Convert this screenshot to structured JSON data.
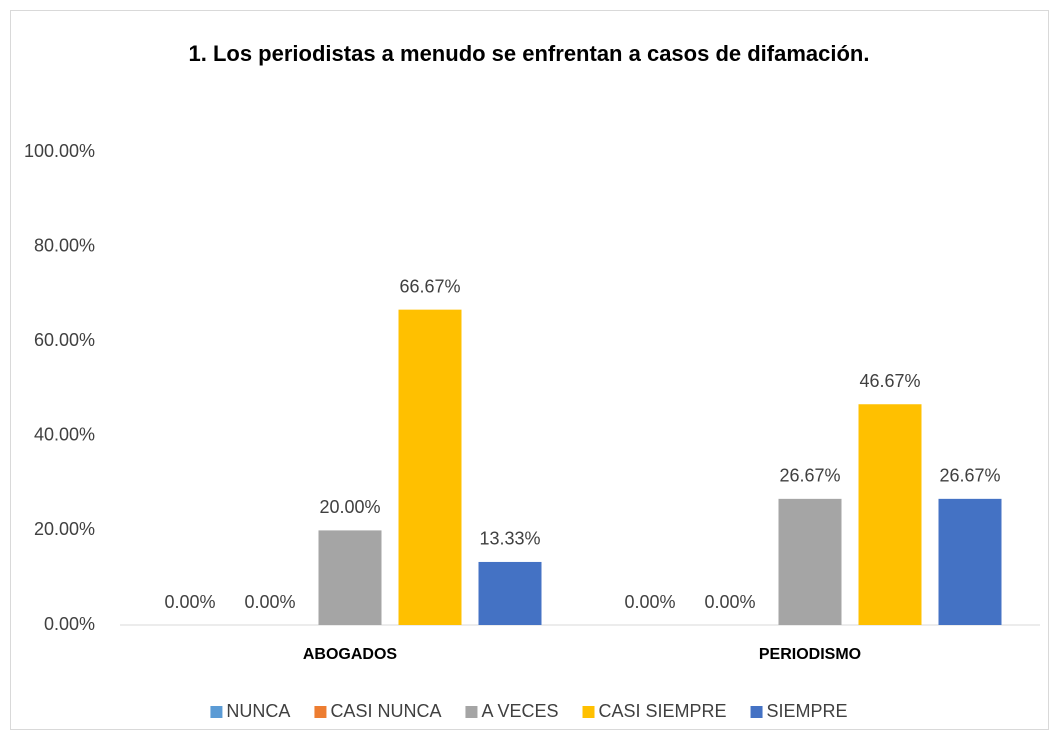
{
  "chart_data": {
    "type": "bar",
    "title": "1. Los periodistas a menudo se enfrentan a casos de difamación.",
    "categories": [
      "ABOGADOS",
      "PERIODISMO"
    ],
    "series": [
      {
        "name": "NUNCA",
        "color": "#5b9bd5",
        "values": [
          0,
          0
        ],
        "value_labels": [
          "0.00%",
          "0.00%"
        ]
      },
      {
        "name": "CASI NUNCA",
        "color": "#ed7d31",
        "values": [
          0,
          0
        ],
        "value_labels": [
          "0.00%",
          "0.00%"
        ]
      },
      {
        "name": "A VECES",
        "color": "#a5a5a5",
        "values": [
          20,
          26.67
        ],
        "value_labels": [
          "20.00%",
          "26.67%"
        ]
      },
      {
        "name": "CASI SIEMPRE",
        "color": "#ffc000",
        "values": [
          66.67,
          46.67
        ],
        "value_labels": [
          "66.67%",
          "46.67%"
        ]
      },
      {
        "name": "SIEMPRE",
        "color": "#4472c4",
        "values": [
          13.33,
          26.67
        ],
        "value_labels": [
          "13.33%",
          "26.67%"
        ]
      }
    ],
    "ylim": [
      0,
      100
    ],
    "yticks": [
      {
        "value": 0,
        "label": "0.00%"
      },
      {
        "value": 20,
        "label": "20.00%"
      },
      {
        "value": 40,
        "label": "40.00%"
      },
      {
        "value": 60,
        "label": "60.00%"
      },
      {
        "value": 80,
        "label": "80.00%"
      },
      {
        "value": 100,
        "label": "100.00%"
      }
    ],
    "grid": false,
    "legend": "bottom"
  }
}
